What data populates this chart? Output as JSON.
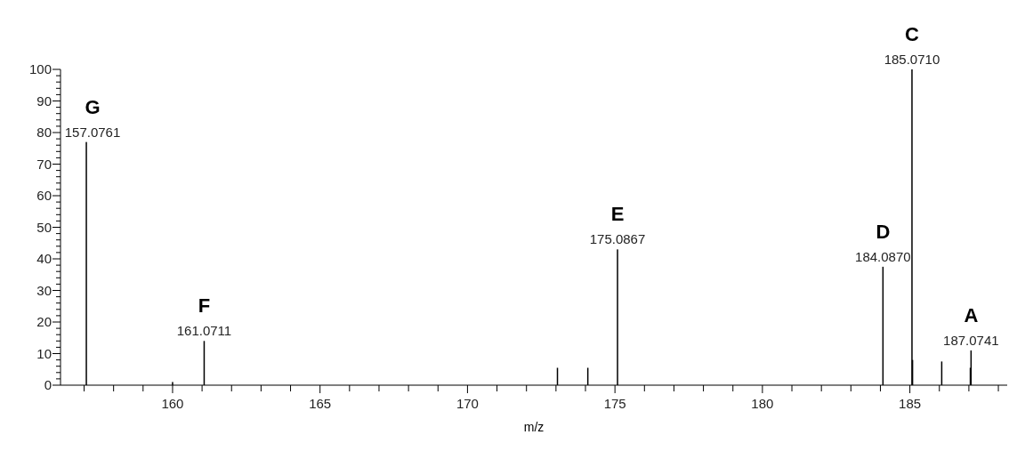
{
  "chart_data": {
    "type": "bar",
    "xlabel": "m/z",
    "x": [
      157.0761,
      160.0,
      161.0711,
      173.05,
      174.08,
      175.0867,
      184.087,
      185.071,
      185.09,
      186.08,
      187.05,
      187.0741
    ],
    "values": [
      77,
      1,
      14,
      5.5,
      5.5,
      43,
      37.5,
      100,
      8,
      7.5,
      5.5,
      11
    ],
    "color": "#000000",
    "annotations": [
      {
        "text": "G",
        "x": 157.0761,
        "y": 77
      },
      {
        "text": "F",
        "x": 161.0711,
        "y": 14
      },
      {
        "text": "E",
        "x": 175.0867,
        "y": 43
      },
      {
        "text": "D",
        "x": 184.087,
        "y": 37.5
      },
      {
        "text": "C",
        "x": 185.071,
        "y": 100
      },
      {
        "text": "A",
        "x": 187.0741,
        "y": 11
      },
      {
        "text": "157.0761",
        "x": 157.0761,
        "y": 77
      },
      {
        "text": "161.0711",
        "x": 161.0711,
        "y": 14
      },
      {
        "text": "175.0867",
        "x": 175.0867,
        "y": 43
      },
      {
        "text": "184.0870",
        "x": 184.087,
        "y": 37.5
      },
      {
        "text": "185.0710",
        "x": 185.071,
        "y": 100
      },
      {
        "text": "187.0741",
        "x": 187.0741,
        "y": 11
      }
    ],
    "xlim": [
      156.2,
      188.3
    ],
    "xticks": [
      {
        "value": 157,
        "label": null
      },
      {
        "value": 158,
        "label": null
      },
      {
        "value": 159,
        "label": null
      },
      160,
      {
        "value": 161,
        "label": null
      },
      {
        "value": 162,
        "label": null
      },
      {
        "value": 163,
        "label": null
      },
      {
        "value": 164,
        "label": null
      },
      165,
      {
        "value": 166,
        "label": null
      },
      {
        "value": 167,
        "label": null
      },
      {
        "value": 168,
        "label": null
      },
      {
        "value": 169,
        "label": null
      },
      170,
      {
        "value": 171,
        "label": null
      },
      {
        "value": 172,
        "label": null
      },
      {
        "value": 173,
        "label": null
      },
      {
        "value": 174,
        "label": null
      },
      175,
      {
        "value": 176,
        "label": null
      },
      {
        "value": 177,
        "label": null
      },
      {
        "value": 178,
        "label": null
      },
      {
        "value": 179,
        "label": null
      },
      180,
      {
        "value": 181,
        "label": null
      },
      {
        "value": 182,
        "label": null
      },
      {
        "value": 183,
        "label": null
      },
      {
        "value": 184,
        "label": null
      },
      185,
      {
        "value": 186,
        "label": null
      },
      {
        "value": 187,
        "label": null
      },
      {
        "value": 188,
        "label": null
      }
    ],
    "ylim": [
      0,
      100
    ],
    "yticks": [
      0,
      10,
      20,
      30,
      40,
      50,
      60,
      70,
      80,
      90,
      100
    ],
    "grid": false
  }
}
